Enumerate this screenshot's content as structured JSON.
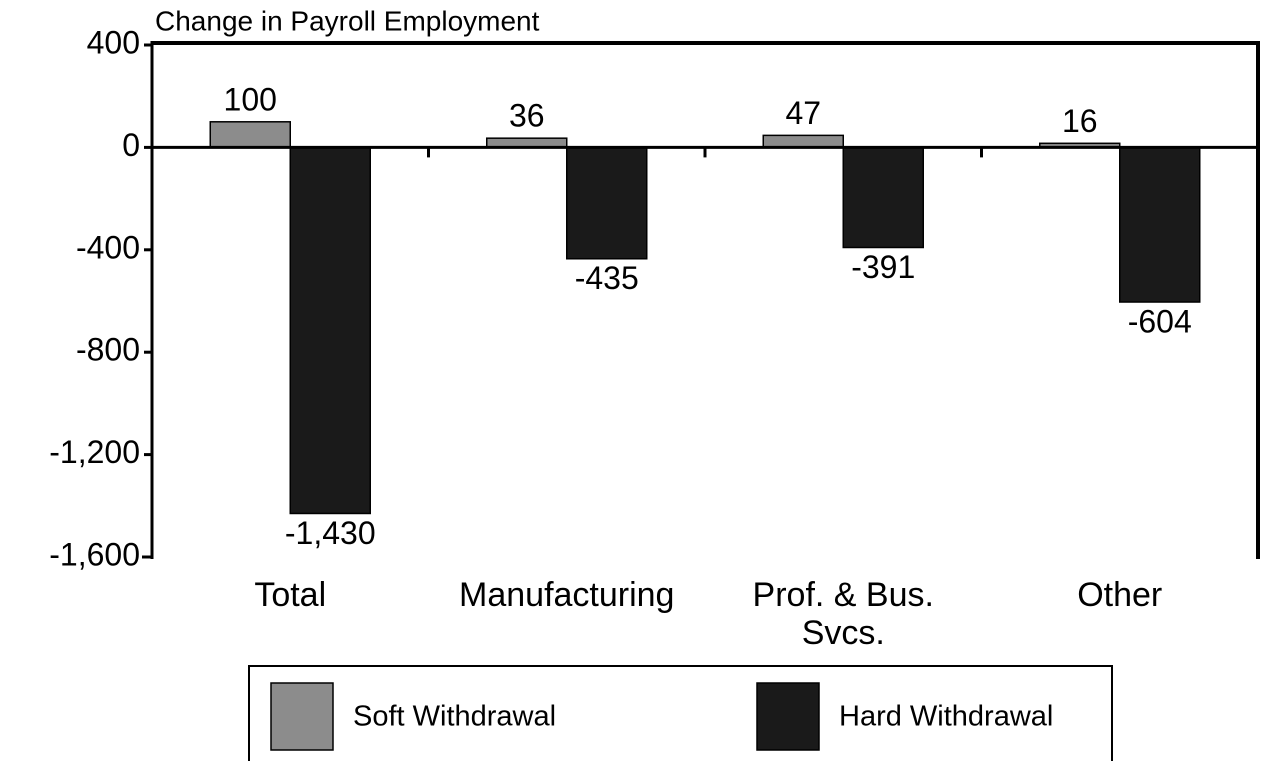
{
  "chart_data": {
    "type": "bar",
    "title": "Change in Payroll Employment",
    "categories": [
      "Total",
      "Manufacturing",
      "Prof. & Bus. Svcs.",
      "Other"
    ],
    "series": [
      {
        "name": "Soft Withdrawal",
        "color": "#8c8c8c",
        "values": [
          100,
          36,
          47,
          16
        ]
      },
      {
        "name": "Hard Withdrawal",
        "color": "#1a1a1a",
        "values": [
          -1430,
          -435,
          -391,
          -604
        ],
        "value_labels": [
          "-1,430",
          "-435",
          "-391",
          "-604"
        ]
      }
    ],
    "ylim": [
      -1600,
      400
    ],
    "yticks": [
      400,
      0,
      -400,
      -800,
      {
        "value": -1200,
        "label": "-1,200"
      },
      {
        "value": -1600,
        "label": "-1,600"
      }
    ],
    "grid": false,
    "legend": "bottom"
  }
}
